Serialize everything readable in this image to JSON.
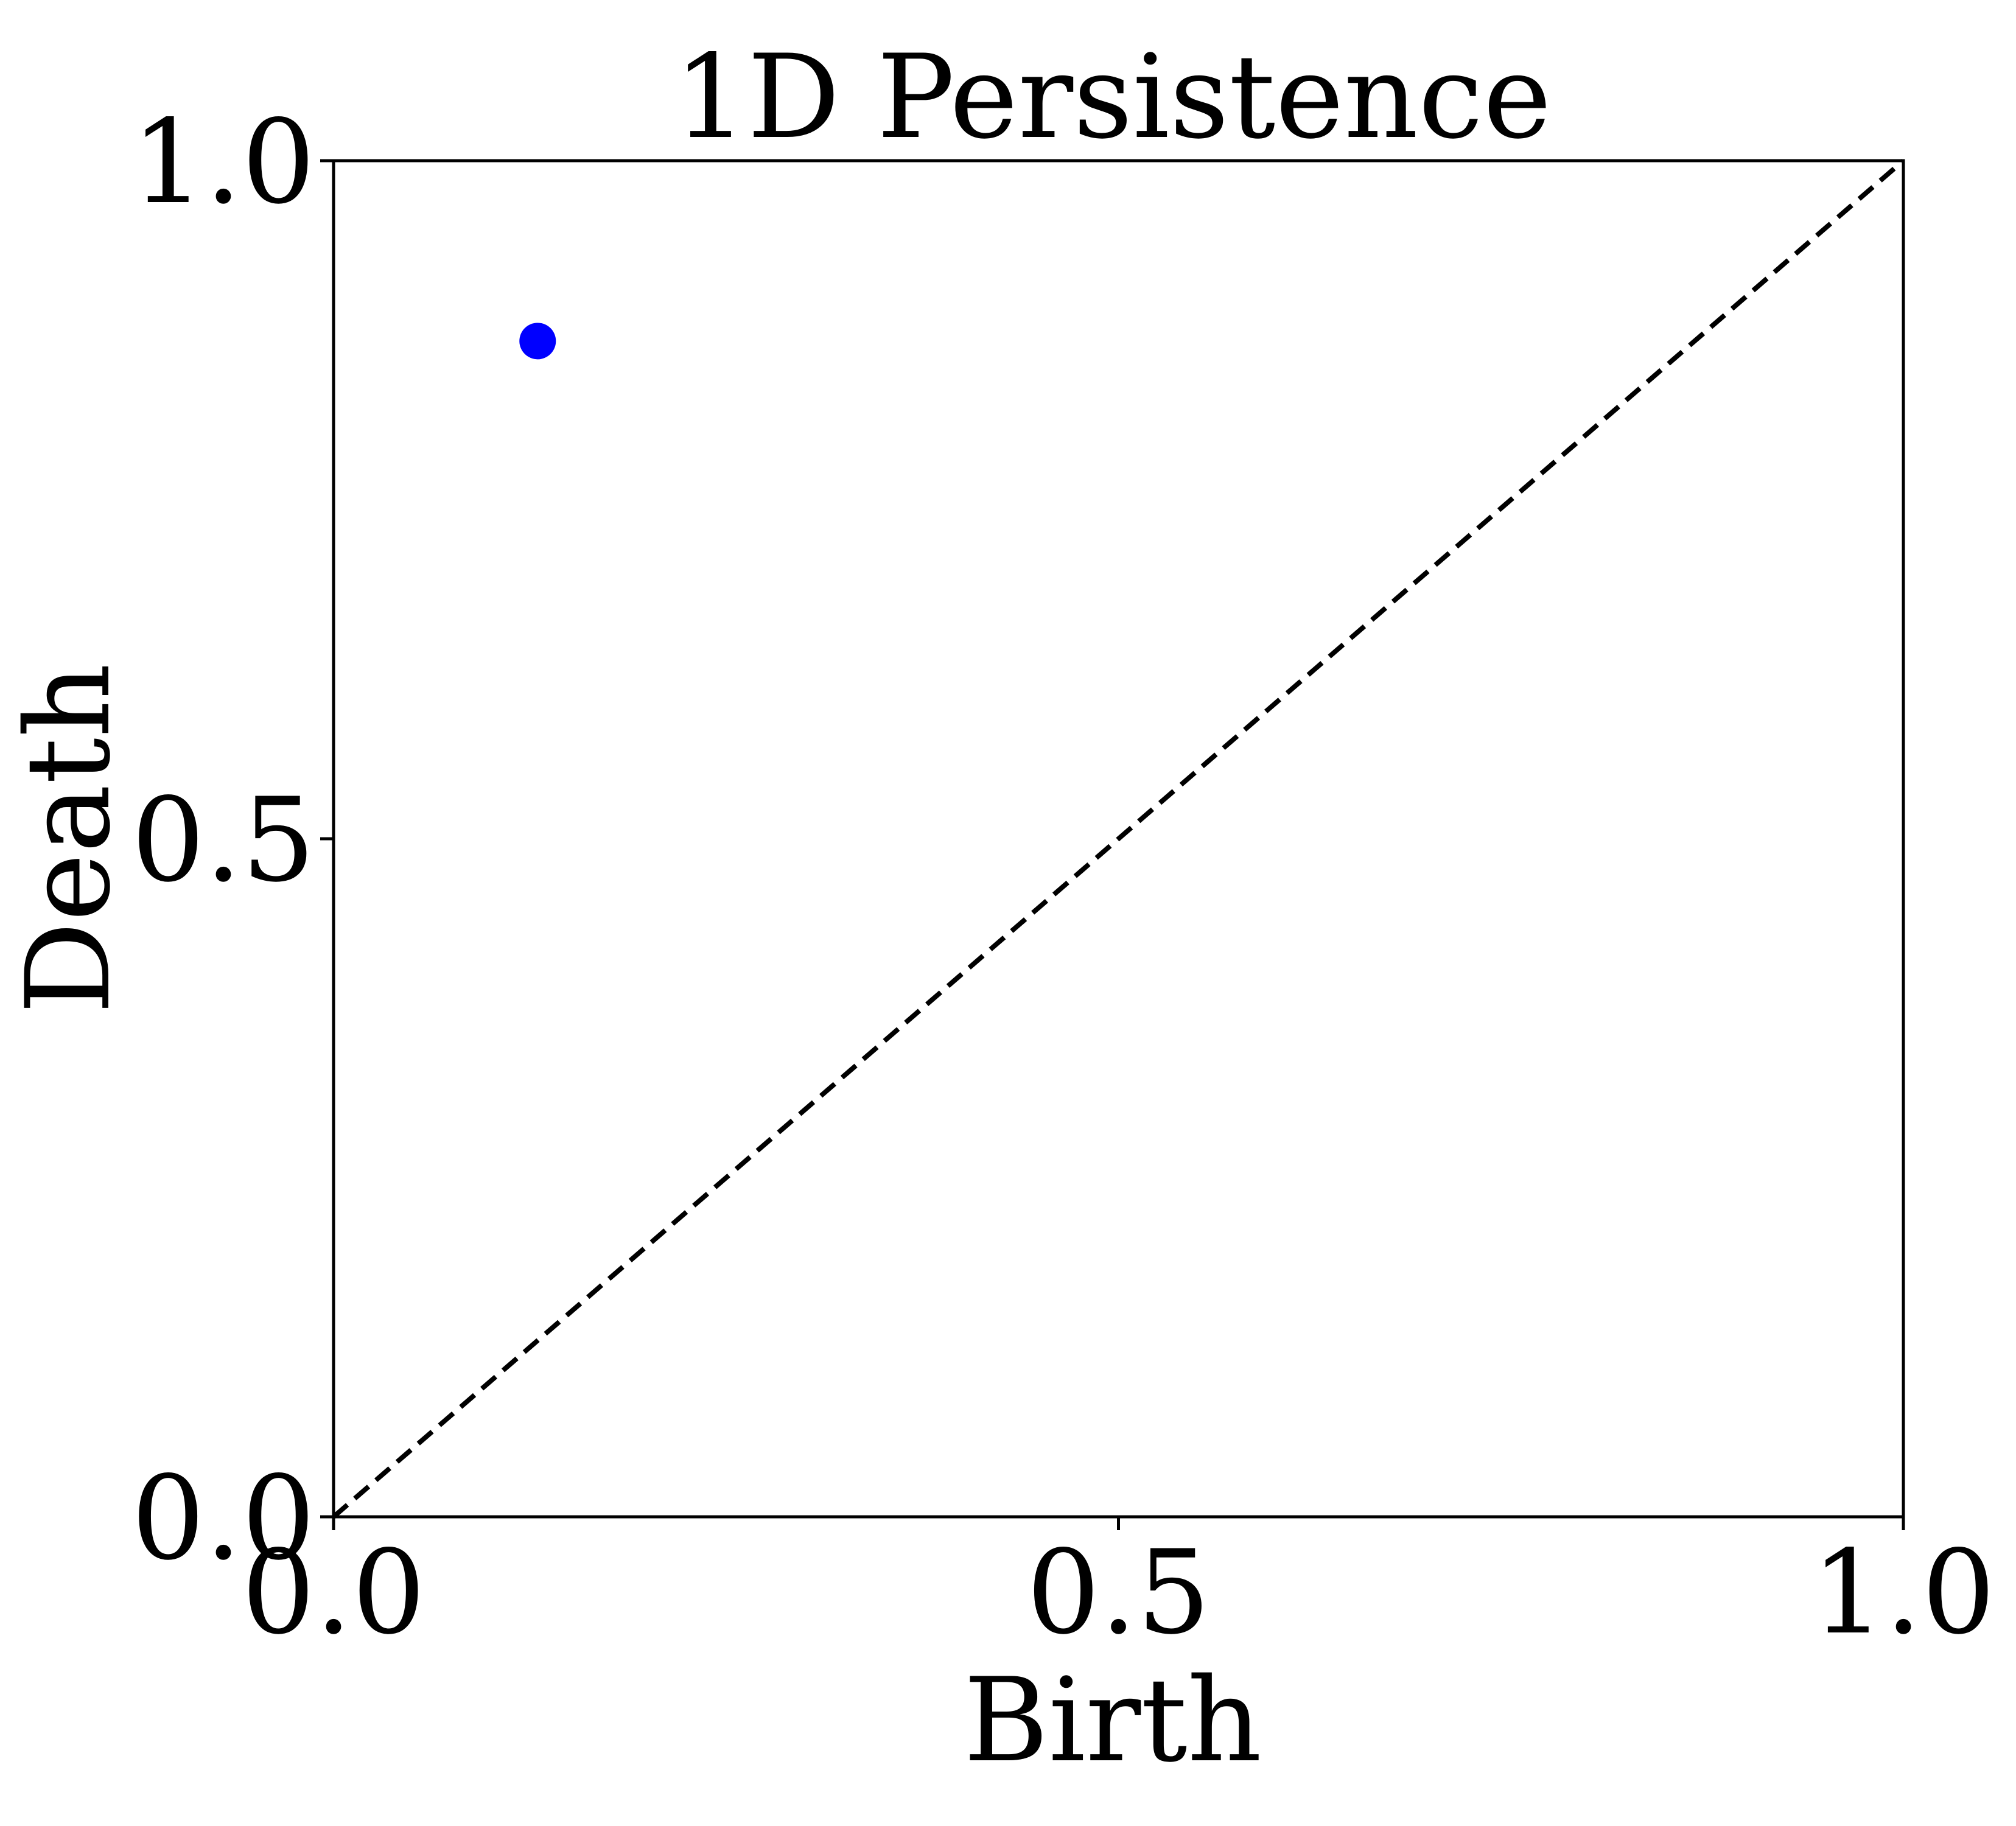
{
  "chart_data": {
    "type": "scatter",
    "title": "1D Persistence",
    "xlabel": "Birth",
    "ylabel": "Death",
    "xlim": [
      0.0,
      1.0
    ],
    "ylim": [
      0.0,
      1.0
    ],
    "xticks": [
      0.0,
      0.5,
      1.0
    ],
    "yticks": [
      0.0,
      0.5,
      1.0
    ],
    "xtick_labels": [
      "0.0",
      "0.5",
      "1.0"
    ],
    "ytick_labels": [
      "0.0",
      "0.5",
      "1.0"
    ],
    "grid": false,
    "legend": false,
    "series": [
      {
        "points": [
          {
            "x": 0.13,
            "y": 0.867
          }
        ],
        "color": "#0000ff"
      }
    ],
    "reference_lines": [
      {
        "kind": "diagonal",
        "from": [
          0.0,
          0.0
        ],
        "to": [
          1.0,
          1.0
        ],
        "style": "dashed",
        "color": "#000000"
      },
      {
        "kind": "horizontal",
        "y": 1.0,
        "style": "dashed",
        "color": "#000000"
      },
      {
        "kind": "vertical",
        "x": 1.0,
        "style": "dashed",
        "color": "#000000"
      }
    ]
  }
}
